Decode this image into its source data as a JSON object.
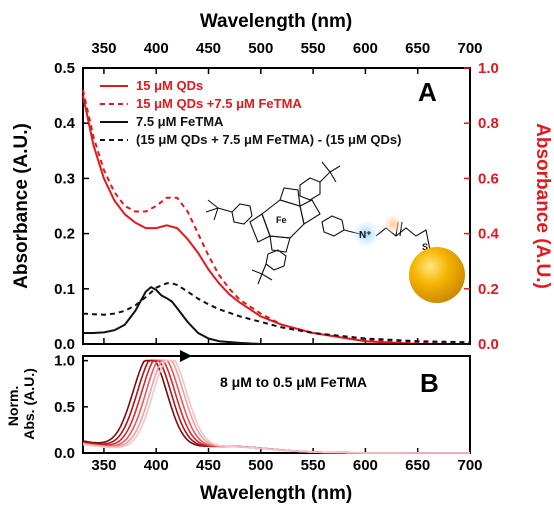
{
  "chart_data": [
    {
      "type": "line",
      "panel_label": "A",
      "xlabel": "Wavelength (nm)",
      "ylabel": "Absorbance (A.U.)",
      "ylabel_right": "Absorbance (A.U.)",
      "xlim": [
        330,
        700
      ],
      "ylim": [
        0,
        0.5
      ],
      "ylim_right": [
        0,
        1.0
      ],
      "x_ticks": [
        350,
        400,
        450,
        500,
        550,
        600,
        650,
        700
      ],
      "y_ticks": [
        "0.0",
        "0.1",
        "0.2",
        "0.3",
        "0.4",
        "0.5"
      ],
      "y_ticks_right": [
        "0.0",
        "0.2",
        "0.4",
        "0.6",
        "0.8",
        "1.0"
      ],
      "legend_position": "top-left",
      "colors": {
        "qd": "#e0191e",
        "fetma": "#111111",
        "right_axis": "#e0191e"
      },
      "series": [
        {
          "name": "15 μM QDs",
          "style": "solid",
          "color": "#e0191e",
          "axis": "right",
          "x": [
            330,
            340,
            350,
            360,
            370,
            380,
            390,
            400,
            410,
            420,
            430,
            440,
            450,
            460,
            470,
            480,
            500,
            520,
            550,
            600,
            650,
            700
          ],
          "y": [
            0.9,
            0.72,
            0.6,
            0.52,
            0.47,
            0.44,
            0.42,
            0.42,
            0.43,
            0.42,
            0.38,
            0.33,
            0.27,
            0.22,
            0.18,
            0.15,
            0.1,
            0.07,
            0.04,
            0.01,
            0.0,
            0.0
          ]
        },
        {
          "name": "15 μM QDs +7.5 μM FeTMA",
          "style": "dashed",
          "color": "#e0191e",
          "axis": "right",
          "x": [
            330,
            340,
            350,
            360,
            370,
            380,
            390,
            400,
            410,
            420,
            430,
            440,
            450,
            460,
            470,
            480,
            500,
            520,
            550,
            600,
            650,
            700
          ],
          "y": [
            0.92,
            0.75,
            0.63,
            0.55,
            0.5,
            0.48,
            0.48,
            0.5,
            0.53,
            0.53,
            0.48,
            0.4,
            0.32,
            0.25,
            0.2,
            0.16,
            0.11,
            0.07,
            0.04,
            0.015,
            0.005,
            0.0
          ]
        },
        {
          "name": "7.5 μM FeTMA",
          "style": "solid",
          "color": "#111111",
          "axis": "left",
          "x": [
            330,
            340,
            350,
            360,
            370,
            380,
            390,
            395,
            400,
            405,
            410,
            415,
            420,
            430,
            440,
            450,
            460,
            480,
            500,
            550,
            600,
            650,
            700
          ],
          "y": [
            0.02,
            0.02,
            0.021,
            0.025,
            0.035,
            0.06,
            0.095,
            0.103,
            0.098,
            0.088,
            0.083,
            0.077,
            0.065,
            0.04,
            0.02,
            0.01,
            0.005,
            0.002,
            0.0,
            0.0,
            0.0,
            0.0,
            0.0
          ]
        },
        {
          "name": "(15 μM QDs + 7.5 μM FeTMA) - (15 μM QDs)",
          "style": "dashed",
          "color": "#111111",
          "axis": "left",
          "x": [
            330,
            340,
            350,
            360,
            370,
            380,
            390,
            400,
            410,
            415,
            420,
            430,
            440,
            450,
            460,
            480,
            500,
            520,
            550,
            600,
            650,
            700
          ],
          "y": [
            0.055,
            0.054,
            0.053,
            0.055,
            0.06,
            0.07,
            0.085,
            0.102,
            0.11,
            0.11,
            0.107,
            0.095,
            0.082,
            0.072,
            0.063,
            0.05,
            0.04,
            0.03,
            0.02,
            0.01,
            0.005,
            0.003
          ]
        }
      ]
    },
    {
      "type": "line",
      "panel_label": "B",
      "xlabel": "Wavelength (nm)",
      "ylabel": "Norm. Abs. (A.U.)",
      "xlim": [
        330,
        700
      ],
      "ylim": [
        0,
        1.05
      ],
      "x_ticks": [
        350,
        400,
        450,
        500,
        550,
        600,
        650,
        700
      ],
      "y_ticks": [
        "0.0",
        "0.5",
        "1.0"
      ],
      "annotation": "8 μM to 0.5 μM FeTMA",
      "series": [
        {
          "color": "#7a0b0b",
          "peak": 394,
          "width": 16,
          "baseline": 0.13
        },
        {
          "color": "#a8161a",
          "peak": 398,
          "width": 16,
          "baseline": 0.12
        },
        {
          "color": "#d42a2f",
          "peak": 402,
          "width": 16,
          "baseline": 0.11
        },
        {
          "color": "#e45a5e",
          "peak": 406,
          "width": 16,
          "baseline": 0.1
        },
        {
          "color": "#ef9ea1",
          "peak": 410,
          "width": 16,
          "baseline": 0.1
        },
        {
          "color": "#f6c4c6",
          "peak": 413,
          "width": 16,
          "baseline": 0.09
        }
      ]
    }
  ]
}
